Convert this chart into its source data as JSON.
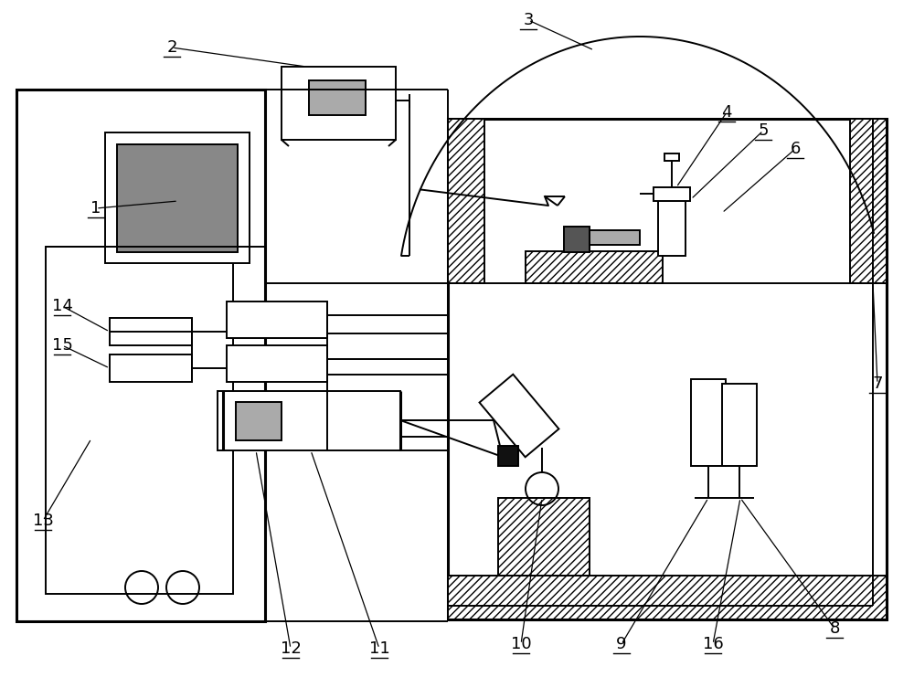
{
  "bg": "#ffffff",
  "lc": "#000000",
  "gray_dark": "#555555",
  "gray_mid": "#888888",
  "gray_light": "#aaaaaa",
  "lw": 1.4,
  "lwt": 2.2,
  "figsize": [
    10.0,
    7.41
  ],
  "dpi": 100
}
